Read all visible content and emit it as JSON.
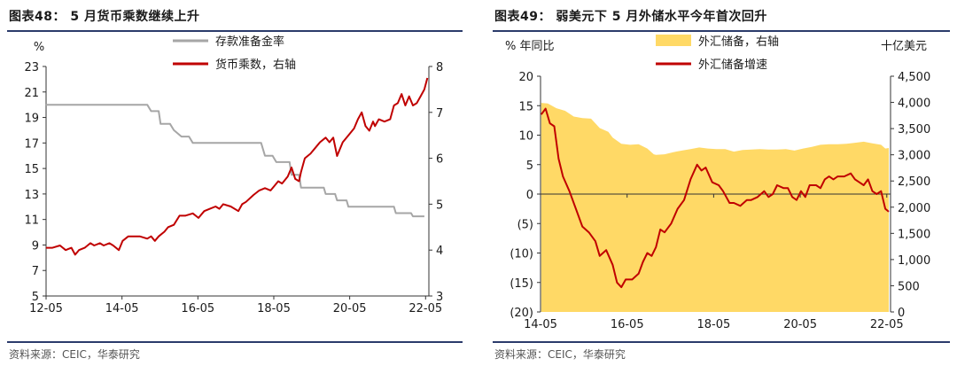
{
  "chart_data": [
    {
      "type": "line",
      "title": "图表48：  5 月货币乘数继续上升",
      "source": "资料来源：CEIC，华泰研究",
      "left_unit": "%",
      "right_unit": "",
      "x_ticks": [
        "12-05",
        "14-05",
        "16-05",
        "18-05",
        "20-05",
        "22-05"
      ],
      "x_range": [
        2012.333,
        2022.42
      ],
      "ylim_left": [
        5,
        23
      ],
      "yticks_left": [
        5,
        7,
        9,
        11,
        13,
        15,
        17,
        19,
        21,
        23
      ],
      "ylim_right": [
        3,
        8
      ],
      "yticks_right": [
        3,
        4,
        5,
        6,
        7,
        8
      ],
      "series": [
        {
          "name": "存款准备金率",
          "axis": "left",
          "color": "#a6a6a6",
          "points": [
            [
              2012.33,
              20.0
            ],
            [
              2012.5,
              20.0
            ],
            [
              2015.0,
              20.0
            ],
            [
              2015.1,
              19.5
            ],
            [
              2015.3,
              19.5
            ],
            [
              2015.35,
              18.5
            ],
            [
              2015.6,
              18.5
            ],
            [
              2015.7,
              18.0
            ],
            [
              2015.9,
              17.5
            ],
            [
              2016.1,
              17.5
            ],
            [
              2016.2,
              17.0
            ],
            [
              2018.0,
              17.0
            ],
            [
              2018.1,
              16.0
            ],
            [
              2018.3,
              16.0
            ],
            [
              2018.4,
              15.5
            ],
            [
              2018.75,
              15.5
            ],
            [
              2018.8,
              14.5
            ],
            [
              2019.0,
              14.5
            ],
            [
              2019.05,
              13.5
            ],
            [
              2019.65,
              13.5
            ],
            [
              2019.7,
              13.0
            ],
            [
              2019.95,
              13.0
            ],
            [
              2020.0,
              12.5
            ],
            [
              2020.25,
              12.5
            ],
            [
              2020.3,
              12.0
            ],
            [
              2021.5,
              12.0
            ],
            [
              2021.55,
              11.5
            ],
            [
              2021.95,
              11.5
            ],
            [
              2022.0,
              11.25
            ],
            [
              2022.3,
              11.25
            ]
          ]
        },
        {
          "name": "货币乘数，右轴",
          "axis": "right",
          "color": "#c00000",
          "points": [
            [
              2012.33,
              4.05
            ],
            [
              2012.5,
              4.05
            ],
            [
              2012.7,
              4.1
            ],
            [
              2012.85,
              4.0
            ],
            [
              2013.0,
              4.05
            ],
            [
              2013.1,
              3.9
            ],
            [
              2013.2,
              4.0
            ],
            [
              2013.35,
              4.05
            ],
            [
              2013.5,
              4.15
            ],
            [
              2013.6,
              4.1
            ],
            [
              2013.75,
              4.15
            ],
            [
              2013.85,
              4.1
            ],
            [
              2014.0,
              4.15
            ],
            [
              2014.1,
              4.1
            ],
            [
              2014.25,
              4.0
            ],
            [
              2014.35,
              4.2
            ],
            [
              2014.5,
              4.3
            ],
            [
              2014.65,
              4.3
            ],
            [
              2014.8,
              4.3
            ],
            [
              2015.0,
              4.25
            ],
            [
              2015.1,
              4.3
            ],
            [
              2015.2,
              4.2
            ],
            [
              2015.3,
              4.3
            ],
            [
              2015.45,
              4.4
            ],
            [
              2015.55,
              4.5
            ],
            [
              2015.7,
              4.55
            ],
            [
              2015.85,
              4.75
            ],
            [
              2016.0,
              4.75
            ],
            [
              2016.2,
              4.8
            ],
            [
              2016.35,
              4.7
            ],
            [
              2016.5,
              4.85
            ],
            [
              2016.65,
              4.9
            ],
            [
              2016.8,
              4.95
            ],
            [
              2016.9,
              4.9
            ],
            [
              2017.0,
              5.0
            ],
            [
              2017.2,
              4.95
            ],
            [
              2017.4,
              4.85
            ],
            [
              2017.5,
              5.0
            ],
            [
              2017.6,
              5.05
            ],
            [
              2017.8,
              5.2
            ],
            [
              2017.95,
              5.3
            ],
            [
              2018.1,
              5.35
            ],
            [
              2018.25,
              5.3
            ],
            [
              2018.35,
              5.4
            ],
            [
              2018.45,
              5.5
            ],
            [
              2018.55,
              5.45
            ],
            [
              2018.7,
              5.6
            ],
            [
              2018.8,
              5.8
            ],
            [
              2018.9,
              5.55
            ],
            [
              2019.0,
              5.5
            ],
            [
              2019.05,
              5.7
            ],
            [
              2019.15,
              6.0
            ],
            [
              2019.3,
              6.1
            ],
            [
              2019.45,
              6.25
            ],
            [
              2019.55,
              6.35
            ],
            [
              2019.7,
              6.45
            ],
            [
              2019.8,
              6.35
            ],
            [
              2019.9,
              6.45
            ],
            [
              2020.0,
              6.05
            ],
            [
              2020.15,
              6.35
            ],
            [
              2020.3,
              6.5
            ],
            [
              2020.45,
              6.65
            ],
            [
              2020.55,
              6.85
            ],
            [
              2020.65,
              7.0
            ],
            [
              2020.75,
              6.7
            ],
            [
              2020.85,
              6.6
            ],
            [
              2020.95,
              6.8
            ],
            [
              2021.0,
              6.7
            ],
            [
              2021.1,
              6.85
            ],
            [
              2021.25,
              6.8
            ],
            [
              2021.4,
              6.85
            ],
            [
              2021.5,
              7.15
            ],
            [
              2021.6,
              7.2
            ],
            [
              2021.7,
              7.4
            ],
            [
              2021.8,
              7.15
            ],
            [
              2021.9,
              7.35
            ],
            [
              2022.0,
              7.15
            ],
            [
              2022.1,
              7.2
            ],
            [
              2022.2,
              7.35
            ],
            [
              2022.3,
              7.5
            ],
            [
              2022.38,
              7.75
            ]
          ]
        }
      ],
      "legend": "top-center"
    },
    {
      "type": "area",
      "title": "图表49：  弱美元下 5 月外储水平今年首次回升",
      "source": "资料来源：CEIC，华泰研究",
      "left_unit": "% 年同比",
      "right_unit": "十亿美元",
      "x_ticks": [
        "14-05",
        "16-05",
        "18-05",
        "20-05",
        "22-05"
      ],
      "x_range": [
        2014.333,
        2022.42
      ],
      "ylim_left": [
        -20,
        20
      ],
      "yticks_left": [
        -20,
        -15,
        -10,
        -5,
        0,
        5,
        10,
        15,
        20
      ],
      "ytick_labels_left": [
        "(20)",
        "(15)",
        "(10)",
        "(5)",
        "0",
        "5",
        "10",
        "15",
        "20"
      ],
      "ylim_right": [
        0,
        4500
      ],
      "yticks_right": [
        0,
        500,
        1000,
        1500,
        2000,
        2500,
        3000,
        3500,
        4000,
        4500
      ],
      "ytick_labels_right": [
        "0",
        "500",
        "1,000",
        "1,500",
        "2,000",
        "2,500",
        "3,000",
        "3,500",
        "4,000",
        "4,500"
      ],
      "series": [
        {
          "name": "外汇储备，右轴",
          "axis": "right",
          "type": "area",
          "color": "#ffd966",
          "points": [
            [
              2014.35,
              3990
            ],
            [
              2014.5,
              3980
            ],
            [
              2014.7,
              3890
            ],
            [
              2014.9,
              3840
            ],
            [
              2015.1,
              3730
            ],
            [
              2015.3,
              3700
            ],
            [
              2015.5,
              3690
            ],
            [
              2015.7,
              3510
            ],
            [
              2015.9,
              3440
            ],
            [
              2016.0,
              3330
            ],
            [
              2016.2,
              3210
            ],
            [
              2016.4,
              3190
            ],
            [
              2016.6,
              3200
            ],
            [
              2016.8,
              3120
            ],
            [
              2016.95,
              3010
            ],
            [
              2017.0,
              2998
            ],
            [
              2017.2,
              3010
            ],
            [
              2017.4,
              3050
            ],
            [
              2017.6,
              3080
            ],
            [
              2017.8,
              3110
            ],
            [
              2018.0,
              3140
            ],
            [
              2018.2,
              3120
            ],
            [
              2018.4,
              3110
            ],
            [
              2018.6,
              3110
            ],
            [
              2018.8,
              3060
            ],
            [
              2019.0,
              3090
            ],
            [
              2019.2,
              3100
            ],
            [
              2019.4,
              3110
            ],
            [
              2019.6,
              3100
            ],
            [
              2019.8,
              3100
            ],
            [
              2020.0,
              3110
            ],
            [
              2020.2,
              3080
            ],
            [
              2020.4,
              3120
            ],
            [
              2020.6,
              3150
            ],
            [
              2020.8,
              3190
            ],
            [
              2021.0,
              3200
            ],
            [
              2021.2,
              3200
            ],
            [
              2021.4,
              3210
            ],
            [
              2021.6,
              3230
            ],
            [
              2021.8,
              3250
            ],
            [
              2022.0,
              3220
            ],
            [
              2022.2,
              3190
            ],
            [
              2022.3,
              3120
            ],
            [
              2022.38,
              3130
            ]
          ]
        },
        {
          "name": "外汇储备增速",
          "axis": "left",
          "type": "line",
          "color": "#c00000",
          "points": [
            [
              2014.35,
              13.5
            ],
            [
              2014.45,
              14.5
            ],
            [
              2014.55,
              12.0
            ],
            [
              2014.65,
              11.5
            ],
            [
              2014.75,
              6.0
            ],
            [
              2014.85,
              3.0
            ],
            [
              2015.0,
              0.5
            ],
            [
              2015.15,
              -2.5
            ],
            [
              2015.3,
              -5.5
            ],
            [
              2015.45,
              -6.5
            ],
            [
              2015.6,
              -8.0
            ],
            [
              2015.7,
              -10.5
            ],
            [
              2015.85,
              -9.5
            ],
            [
              2016.0,
              -12.0
            ],
            [
              2016.1,
              -15.0
            ],
            [
              2016.2,
              -15.8
            ],
            [
              2016.3,
              -14.5
            ],
            [
              2016.45,
              -14.5
            ],
            [
              2016.6,
              -13.5
            ],
            [
              2016.7,
              -11.5
            ],
            [
              2016.8,
              -10.0
            ],
            [
              2016.9,
              -10.5
            ],
            [
              2017.0,
              -9.0
            ],
            [
              2017.1,
              -6.0
            ],
            [
              2017.2,
              -6.5
            ],
            [
              2017.35,
              -5.0
            ],
            [
              2017.5,
              -2.5
            ],
            [
              2017.65,
              -1.0
            ],
            [
              2017.8,
              2.5
            ],
            [
              2017.95,
              5.0
            ],
            [
              2018.05,
              4.0
            ],
            [
              2018.15,
              4.5
            ],
            [
              2018.3,
              2.0
            ],
            [
              2018.45,
              1.5
            ],
            [
              2018.55,
              0.5
            ],
            [
              2018.7,
              -1.5
            ],
            [
              2018.8,
              -1.5
            ],
            [
              2018.95,
              -2.0
            ],
            [
              2019.1,
              -1.0
            ],
            [
              2019.2,
              -1.0
            ],
            [
              2019.35,
              -0.5
            ],
            [
              2019.5,
              0.5
            ],
            [
              2019.6,
              -0.5
            ],
            [
              2019.7,
              0.0
            ],
            [
              2019.8,
              1.5
            ],
            [
              2019.95,
              1.0
            ],
            [
              2020.05,
              1.0
            ],
            [
              2020.15,
              -0.5
            ],
            [
              2020.25,
              -1.0
            ],
            [
              2020.35,
              0.5
            ],
            [
              2020.45,
              -0.5
            ],
            [
              2020.55,
              1.5
            ],
            [
              2020.7,
              1.5
            ],
            [
              2020.8,
              1.0
            ],
            [
              2020.9,
              2.5
            ],
            [
              2021.0,
              3.0
            ],
            [
              2021.1,
              2.5
            ],
            [
              2021.2,
              3.0
            ],
            [
              2021.35,
              3.0
            ],
            [
              2021.5,
              3.5
            ],
            [
              2021.6,
              2.5
            ],
            [
              2021.7,
              2.0
            ],
            [
              2021.8,
              1.5
            ],
            [
              2021.9,
              2.5
            ],
            [
              2022.0,
              0.5
            ],
            [
              2022.1,
              0.0
            ],
            [
              2022.2,
              0.5
            ],
            [
              2022.3,
              -2.5
            ],
            [
              2022.38,
              -3.0
            ]
          ]
        }
      ],
      "legend": "top-center"
    }
  ]
}
